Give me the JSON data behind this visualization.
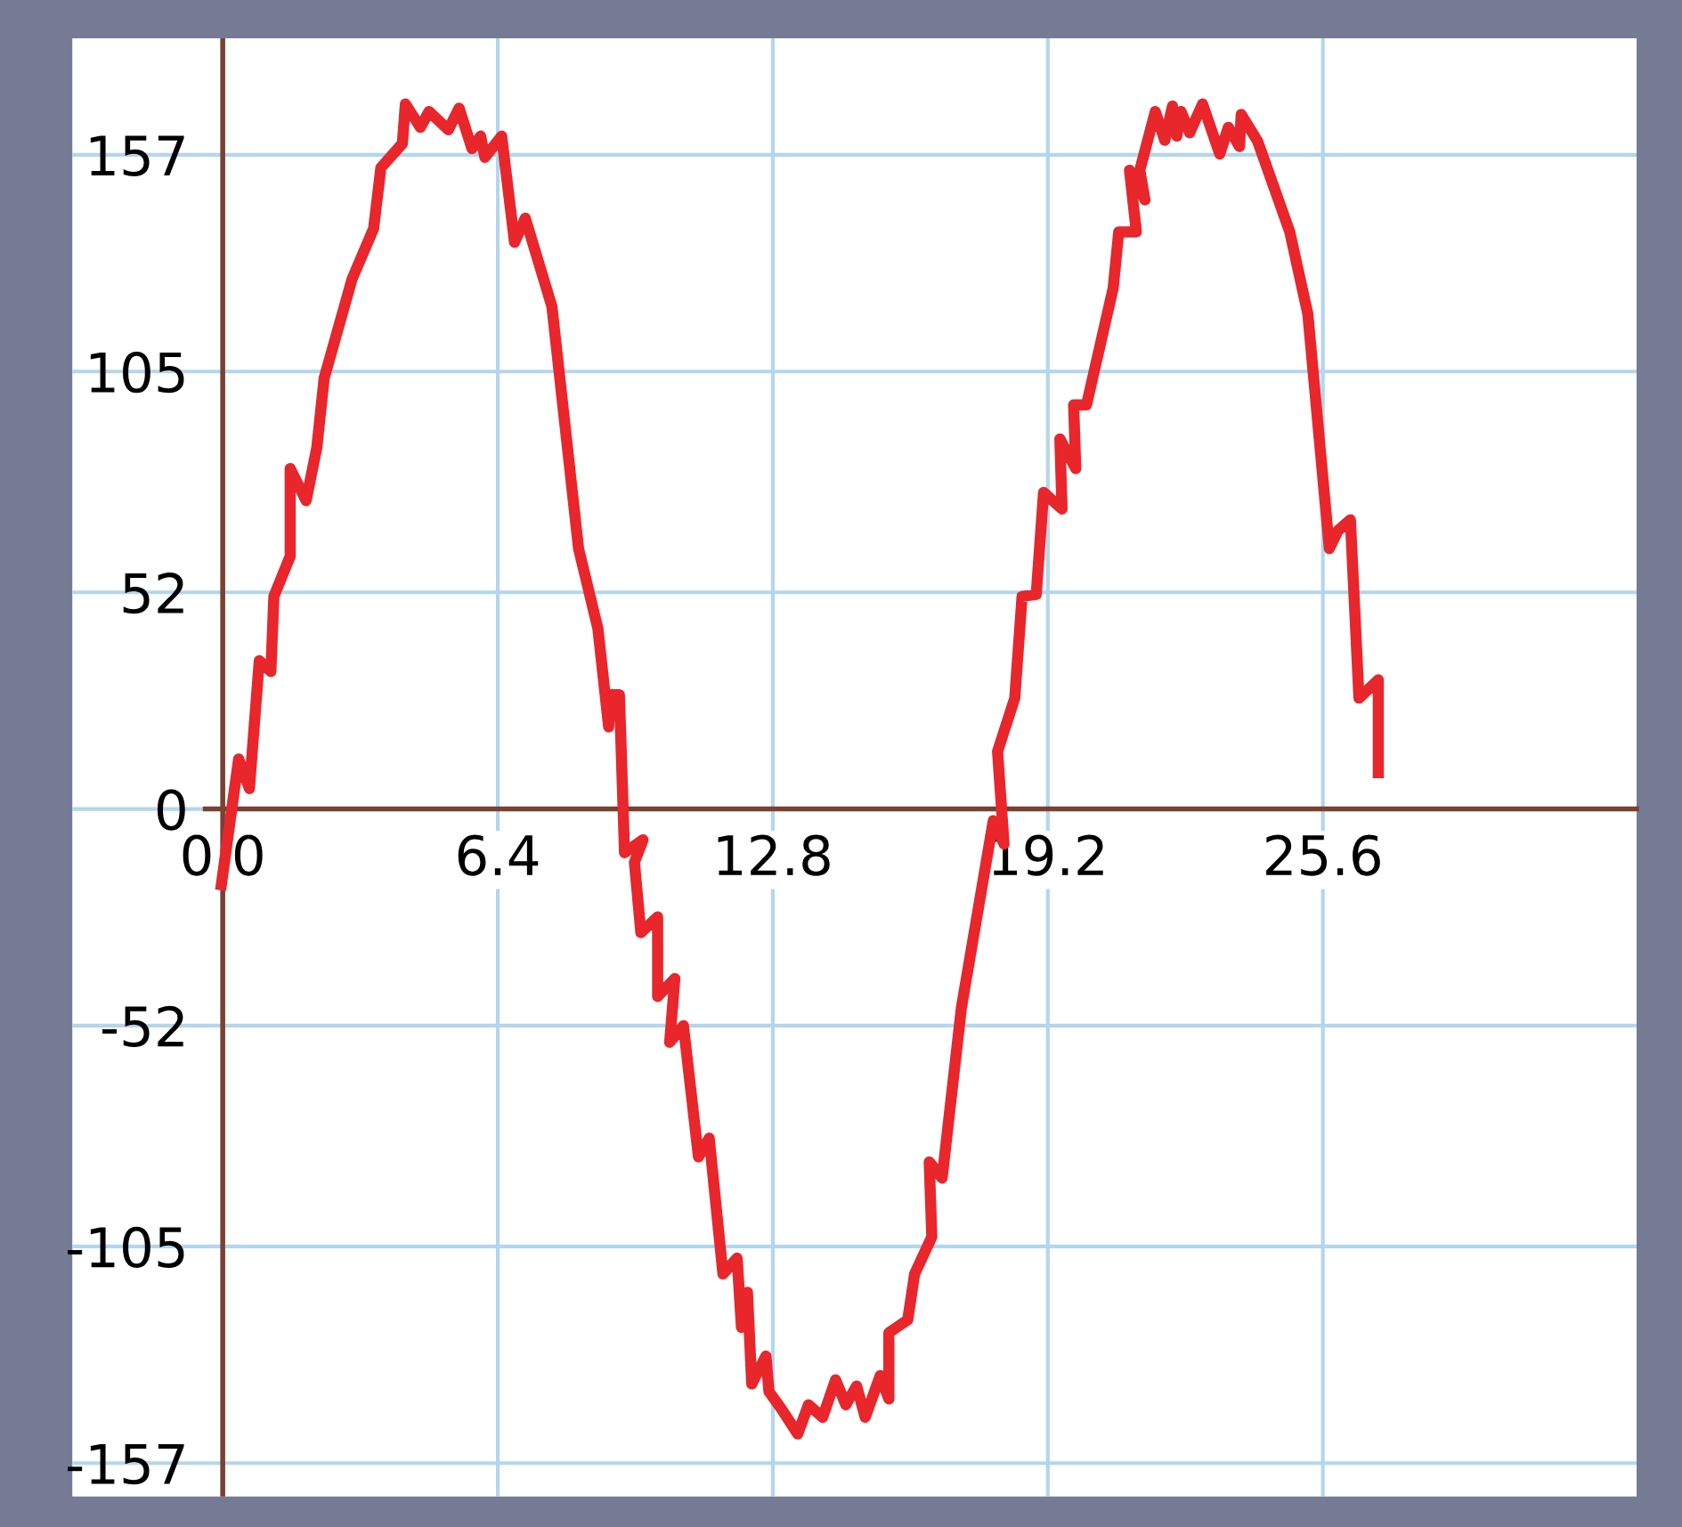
{
  "chart_data": {
    "type": "line",
    "color": "#e8262b",
    "x": [
      -0.05,
      0.37,
      0.62,
      0.85,
      1.12,
      1.19,
      1.57,
      1.57,
      1.94,
      2.19,
      2.36,
      3.01,
      3.51,
      3.68,
      4.18,
      4.25,
      4.6,
      4.8,
      5.25,
      5.5,
      5.8,
      6.0,
      6.1,
      6.49,
      6.79,
      7.04,
      7.66,
      8.28,
      8.73,
      8.98,
      9.03,
      9.23,
      9.35,
      9.78,
      9.58,
      9.73,
      10.12,
      10.12,
      10.52,
      10.4,
      10.72,
      11.07,
      11.32,
      11.64,
      11.97,
      12.07,
      12.21,
      12.31,
      12.64,
      12.71,
      13.0,
      13.38,
      13.63,
      13.96,
      14.26,
      14.5,
      14.75,
      14.95,
      15.3,
      15.5,
      15.5,
      15.94,
      16.1,
      16.5,
      16.44,
      16.74,
      17.19,
      17.93,
      18.18,
      18.03,
      18.43,
      18.6,
      18.93,
      19.1,
      19.53,
      19.48,
      19.85,
      19.8,
      20.1,
      20.72,
      20.85,
      21.26,
      21.1,
      21.46,
      21.34,
      21.7,
      21.92,
      22.1,
      22.2,
      22.3,
      22.5,
      22.8,
      23.2,
      23.4,
      23.66,
      23.7,
      24.08,
      24.83,
      25.25,
      25.75,
      25.95,
      26.24,
      26.44,
      26.89,
      26.89
    ],
    "values": [
      -19.5,
      12,
      4.9,
      35.6,
      33,
      51,
      60.7,
      81.7,
      74,
      86.8,
      103.4,
      127.2,
      139.3,
      153.9,
      159.7,
      169.2,
      163.6,
      167.4,
      163,
      168.2,
      158.5,
      161.5,
      156.4,
      161.5,
      136,
      141.8,
      120.6,
      62.5,
      43.3,
      19.7,
      27.4,
      27.4,
      -10.5,
      -7.4,
      -12.8,
      -29.7,
      -25.9,
      -45,
      -40.7,
      -56,
      -52,
      -83.5,
      -79,
      -111.6,
      -107.8,
      -124.4,
      -116,
      -138,
      -131.3,
      -139.8,
      -144,
      -150,
      -143,
      -146,
      -137,
      -143,
      -138.5,
      -146,
      -136,
      -141.6,
      -125.7,
      -122.6,
      -111.6,
      -102.7,
      -84.7,
      -88.6,
      -47.6,
      -2.8,
      -8.4,
      13.8,
      26.6,
      51,
      51.5,
      76,
      72,
      88.8,
      81.7,
      97,
      97,
      125,
      138.5,
      138.5,
      153.3,
      146.2,
      153.3,
      167.4,
      160.5,
      168.7,
      161.5,
      167.4,
      162.3,
      169.2,
      157.2,
      163.6,
      159,
      166.7,
      160.3,
      138.5,
      118.8,
      62.5,
      66.8,
      69.4,
      26.6,
      31,
      7.4
    ],
    "xlim": [
      -3.5,
      32.9
    ],
    "ylim": [
      -165,
      185
    ],
    "xticks": [
      {
        "value": 0,
        "label": "0.0"
      },
      6.4,
      12.8,
      19.2,
      25.6
    ],
    "yticks": [
      -157,
      -105,
      -52,
      0,
      52,
      105,
      157
    ],
    "ref_lines": [
      {
        "axis": "x",
        "value": 0,
        "color": "#7a4030"
      }
    ],
    "grid": true,
    "marker": "none",
    "line_style": "solid"
  }
}
